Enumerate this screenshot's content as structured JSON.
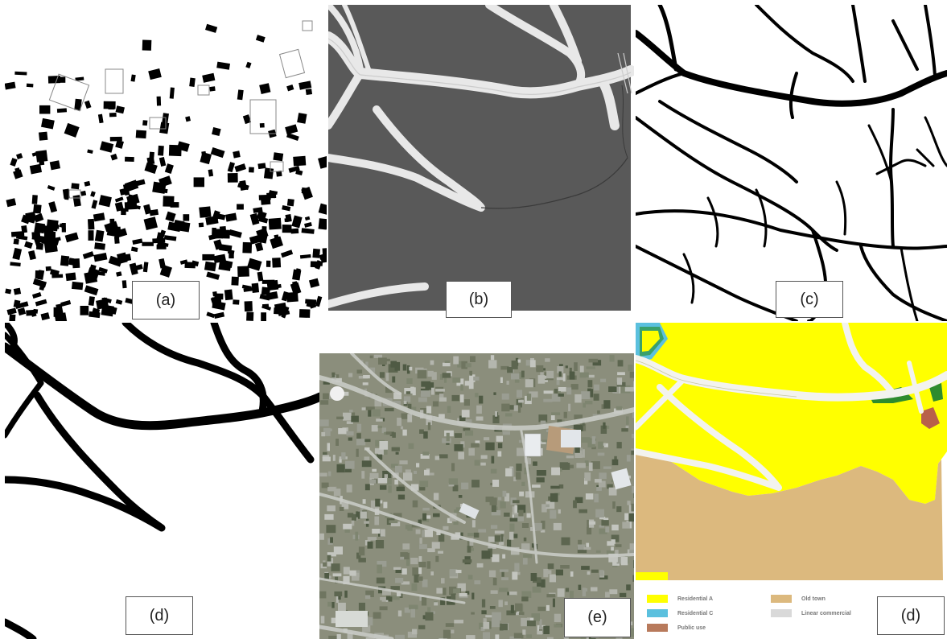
{
  "panels": {
    "a": {
      "label": "(a)"
    },
    "b": {
      "label": "(b)"
    },
    "c": {
      "label": "(c)"
    },
    "d_left": {
      "label": "(d)"
    },
    "e": {
      "label": "(e)"
    },
    "d_right": {
      "label": "(d)"
    }
  },
  "legend": {
    "items": [
      {
        "label": "Residential A",
        "color": "#ffff00"
      },
      {
        "label": "Residential C",
        "color": "#5bc0de"
      },
      {
        "label": "Public use",
        "color": "#b87a5c"
      },
      {
        "label": "Old town",
        "color": "#dcb97e"
      },
      {
        "label": "Linear commercial",
        "color": "#d9d9d9"
      }
    ]
  }
}
